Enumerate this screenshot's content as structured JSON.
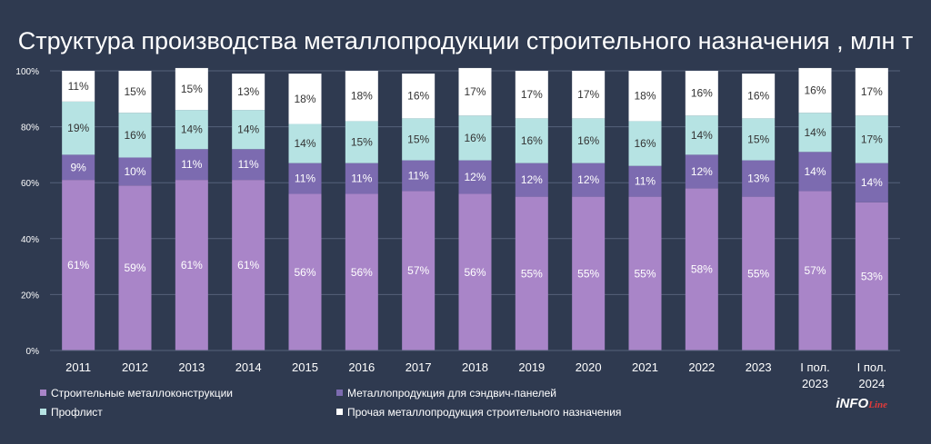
{
  "chart_data": {
    "type": "bar",
    "stacked": true,
    "title": "Структура производства металлопродукции строительного назначения , млн т",
    "categories": [
      "2011",
      "2012",
      "2013",
      "2014",
      "2015",
      "2016",
      "2017",
      "2018",
      "2019",
      "2020",
      "2021",
      "2022",
      "2023",
      "I пол.\n2023",
      "I пол.\n2024"
    ],
    "ylim": [
      0,
      100
    ],
    "yticks": [
      "0%",
      "20%",
      "40%",
      "60%",
      "80%",
      "100%"
    ],
    "grid": true,
    "legend_position": "bottom",
    "series": [
      {
        "name": "Строительные металлоконструкции",
        "color": "#a985c8",
        "label_color": "#ffffff",
        "values": [
          61,
          59,
          61,
          61,
          56,
          56,
          57,
          56,
          55,
          55,
          55,
          58,
          55,
          57,
          53
        ]
      },
      {
        "name": "Металлопродукция для сэндвич-панелей",
        "color": "#7c6bb0",
        "label_color": "#ffffff",
        "values": [
          9,
          10,
          11,
          11,
          11,
          11,
          11,
          12,
          12,
          12,
          11,
          12,
          13,
          14,
          14
        ]
      },
      {
        "name": "Профлист",
        "color": "#b6e3e3",
        "label_color": "#333333",
        "values": [
          19,
          16,
          14,
          14,
          14,
          15,
          15,
          16,
          16,
          16,
          16,
          14,
          15,
          14,
          17
        ]
      },
      {
        "name": "Прочая металлопродукция строительного назначения",
        "color": "#ffffff",
        "label_color": "#333333",
        "values": [
          11,
          15,
          15,
          13,
          18,
          18,
          16,
          17,
          17,
          17,
          18,
          16,
          16,
          16,
          17
        ]
      }
    ]
  },
  "brand": {
    "main": "iNFO",
    "sub": "Line"
  }
}
